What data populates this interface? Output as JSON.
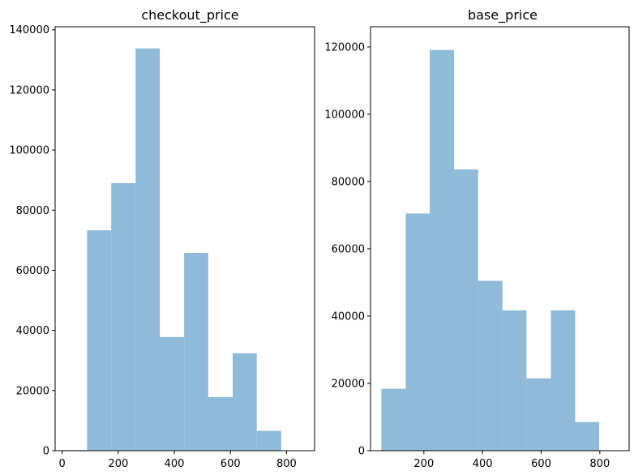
{
  "chart_data": [
    {
      "type": "bar",
      "title": "checkout_price",
      "xlabel": "",
      "ylabel": "",
      "bar_color": "#8fbad8",
      "xlim": [
        -25,
        900
      ],
      "ylim": [
        0,
        141000
      ],
      "xticks": [
        0,
        200,
        400,
        600,
        800
      ],
      "yticks": [
        0,
        20000,
        40000,
        60000,
        80000,
        100000,
        120000,
        140000
      ],
      "bins": [
        {
          "x0": 2,
          "x1": 89,
          "value": 200
        },
        {
          "x0": 89,
          "x1": 175,
          "value": 73300
        },
        {
          "x0": 175,
          "x1": 262,
          "value": 89000
        },
        {
          "x0": 262,
          "x1": 348,
          "value": 133800
        },
        {
          "x0": 348,
          "x1": 435,
          "value": 37800
        },
        {
          "x0": 435,
          "x1": 521,
          "value": 65800
        },
        {
          "x0": 521,
          "x1": 608,
          "value": 17800
        },
        {
          "x0": 608,
          "x1": 694,
          "value": 32400
        },
        {
          "x0": 694,
          "x1": 781,
          "value": 6600
        }
      ]
    },
    {
      "type": "bar",
      "title": "base_price",
      "xlabel": "",
      "ylabel": "",
      "bar_color": "#8fbad8",
      "xlim": [
        18,
        900
      ],
      "ylim": [
        0,
        126000
      ],
      "xticks": [
        200,
        400,
        600,
        800
      ],
      "yticks": [
        0,
        20000,
        40000,
        60000,
        80000,
        100000,
        120000
      ],
      "bins": [
        {
          "x0": 55,
          "x1": 138,
          "value": 18400
        },
        {
          "x0": 138,
          "x1": 220,
          "value": 70500
        },
        {
          "x0": 220,
          "x1": 303,
          "value": 119100
        },
        {
          "x0": 303,
          "x1": 385,
          "value": 83600
        },
        {
          "x0": 385,
          "x1": 468,
          "value": 50500
        },
        {
          "x0": 468,
          "x1": 550,
          "value": 41700
        },
        {
          "x0": 550,
          "x1": 633,
          "value": 21500
        },
        {
          "x0": 633,
          "x1": 716,
          "value": 41700
        },
        {
          "x0": 716,
          "x1": 798,
          "value": 8500
        }
      ]
    }
  ]
}
